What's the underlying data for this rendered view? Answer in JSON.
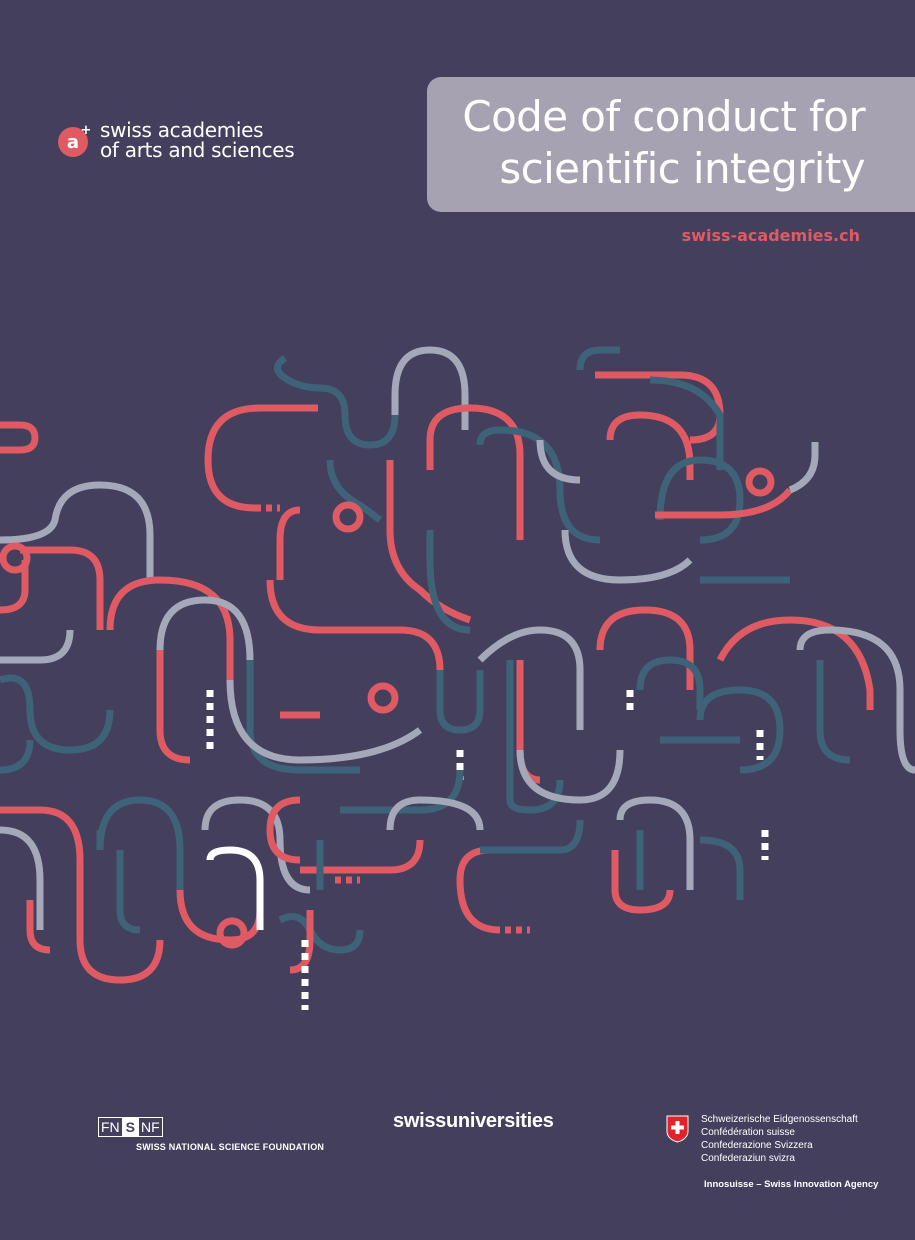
{
  "header": {
    "logo_mark": "a",
    "logo_plus": "+",
    "logo_line1": "swiss academies",
    "logo_line2": "of arts and sciences",
    "title_line1": "Code of conduct for",
    "title_line2": "scientific integrity",
    "website": "swiss-academies.ch"
  },
  "colors": {
    "background": "#433f5d",
    "title_box": "#a6a2b1",
    "accent_red": "#e05a63",
    "teal": "#3e6378",
    "grey": "#a4a8b8",
    "light": "#dcdde3"
  },
  "footer": {
    "snf_fn": "FN",
    "snf_s": "S",
    "snf_nf": "NF",
    "snf_name": "SWISS NATIONAL SCIENCE FOUNDATION",
    "swissuniversities": "swissuniversities",
    "confederation_lines": [
      "Schweizerische Eidgenossenschaft",
      "Confédération suisse",
      "Confederazione Svizzera",
      "Confederaziun svizra"
    ],
    "innosuisse": "Innosuisse – Swiss Innovation Agency"
  }
}
